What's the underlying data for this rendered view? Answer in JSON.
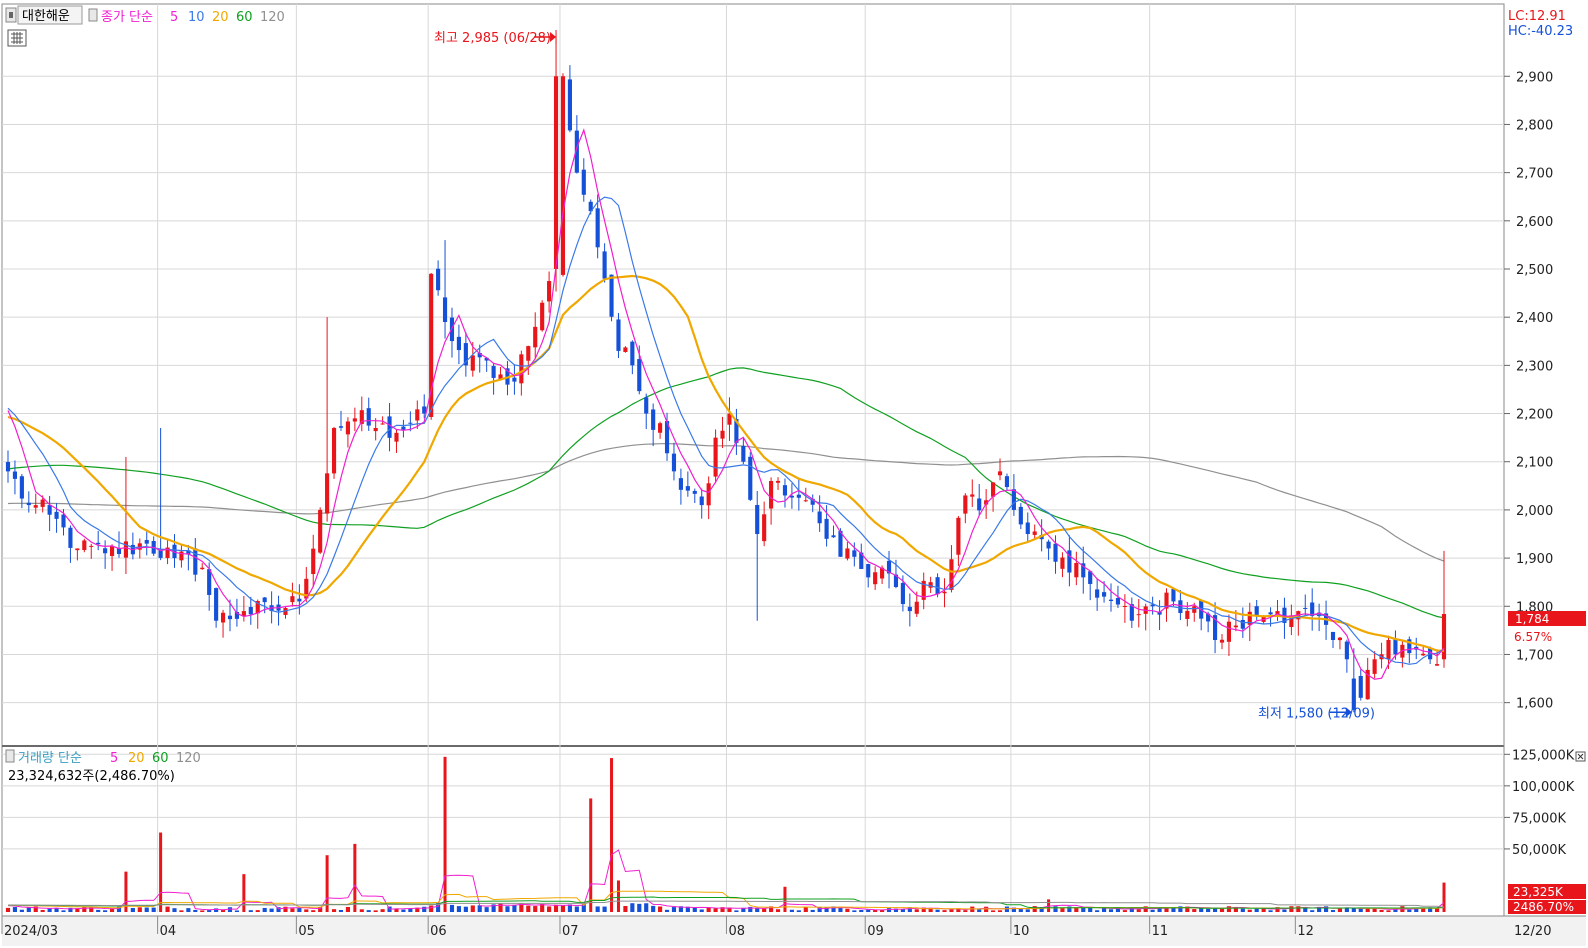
{
  "legend_price": {
    "box": "대한해운",
    "prefix": "종가 단순",
    "ma": [
      "5",
      "10",
      "20",
      "60",
      "120"
    ]
  },
  "legend_volume": {
    "prefix": "거래량 단순",
    "ma": [
      "5",
      "20",
      "60",
      "120"
    ],
    "summary": "23,324,632주(2,486.70%)"
  },
  "corner": {
    "lc": "LC:12.91",
    "hc": "HC:-40.23"
  },
  "price_tag": {
    "value": "1,784",
    "change": "6.57%"
  },
  "volume_tag": {
    "value": "23,325K",
    "change": "2486.70%"
  },
  "annotations": {
    "high": {
      "text": "최고 2,985 (06/28)",
      "value": 2985
    },
    "low": {
      "text": "최저 1,580 (12/09)",
      "value": 1580
    }
  },
  "colors": {
    "up": "#e8151b",
    "down": "#1450d8",
    "ma5": "#f020d0",
    "ma10": "#3a7ae8",
    "ma20": "#f0a800",
    "ma60": "#10a020",
    "ma120": "#909090",
    "grid": "#d8d8d8"
  },
  "chart_data": [
    {
      "type": "candlestick",
      "y_ticks": [
        "2,900",
        "2,800",
        "2,700",
        "2,600",
        "2,500",
        "2,400",
        "2,300",
        "2,200",
        "2,100",
        "2,000",
        "1,900",
        "1,800",
        "1,700",
        "1,600"
      ],
      "y_tick_values": [
        2900,
        2800,
        2700,
        2600,
        2500,
        2400,
        2300,
        2200,
        2100,
        2000,
        1900,
        1800,
        1700,
        1600
      ],
      "ylim": [
        1510,
        3050
      ],
      "x_ticks": [
        "2024/03",
        "04",
        "05",
        "06",
        "07",
        "08",
        "09",
        "10",
        "11",
        "12",
        "12/20"
      ],
      "x_tick_bars": [
        0,
        22,
        42,
        61,
        80,
        104,
        124,
        145,
        165,
        186,
        208
      ],
      "bar_count": 208,
      "close_anchors": [
        [
          0,
          2080
        ],
        [
          3,
          2010
        ],
        [
          6,
          1990
        ],
        [
          10,
          1920
        ],
        [
          14,
          1910
        ],
        [
          20,
          1930
        ],
        [
          24,
          1900
        ],
        [
          28,
          1880
        ],
        [
          30,
          1770
        ],
        [
          34,
          1790
        ],
        [
          38,
          1790
        ],
        [
          42,
          1810
        ],
        [
          45,
          2000
        ],
        [
          47,
          2170
        ],
        [
          50,
          2190
        ],
        [
          53,
          2170
        ],
        [
          56,
          2160
        ],
        [
          58,
          2180
        ],
        [
          60,
          2200
        ],
        [
          61,
          2490
        ],
        [
          63,
          2390
        ],
        [
          66,
          2300
        ],
        [
          69,
          2310
        ],
        [
          72,
          2260
        ],
        [
          75,
          2340
        ],
        [
          77,
          2430
        ],
        [
          79,
          2500
        ],
        [
          80,
          2900
        ],
        [
          82,
          2700
        ],
        [
          84,
          2620
        ],
        [
          86,
          2480
        ],
        [
          88,
          2330
        ],
        [
          90,
          2300
        ],
        [
          92,
          2200
        ],
        [
          94,
          2180
        ],
        [
          96,
          2080
        ],
        [
          98,
          2040
        ],
        [
          100,
          2010
        ],
        [
          102,
          2150
        ],
        [
          104,
          2200
        ],
        [
          106,
          2100
        ],
        [
          108,
          1950
        ],
        [
          110,
          2060
        ],
        [
          112,
          2030
        ],
        [
          115,
          2020
        ],
        [
          118,
          1940
        ],
        [
          121,
          1920
        ],
        [
          124,
          1860
        ],
        [
          126,
          1880
        ],
        [
          128,
          1840
        ],
        [
          130,
          1790
        ],
        [
          133,
          1850
        ],
        [
          135,
          1830
        ],
        [
          138,
          2030
        ],
        [
          141,
          2020
        ],
        [
          143,
          2080
        ],
        [
          145,
          2000
        ],
        [
          147,
          1950
        ],
        [
          150,
          1920
        ],
        [
          153,
          1870
        ],
        [
          155,
          1860
        ],
        [
          158,
          1820
        ],
        [
          162,
          1770
        ],
        [
          165,
          1800
        ],
        [
          168,
          1810
        ],
        [
          171,
          1800
        ],
        [
          174,
          1730
        ],
        [
          177,
          1760
        ],
        [
          180,
          1780
        ],
        [
          183,
          1790
        ],
        [
          186,
          1790
        ],
        [
          188,
          1780
        ],
        [
          191,
          1730
        ],
        [
          193,
          1690
        ],
        [
          195,
          1610
        ],
        [
          197,
          1690
        ],
        [
          199,
          1730
        ],
        [
          201,
          1720
        ],
        [
          203,
          1710
        ],
        [
          205,
          1690
        ],
        [
          206,
          1680
        ],
        [
          207,
          1784
        ]
      ],
      "high": 2985,
      "low": 1580,
      "last_close": 1784,
      "change_pct": 6.57,
      "ma_periods": [
        5,
        10,
        20,
        60,
        120
      ]
    },
    {
      "type": "bar",
      "series": "volume",
      "y_ticks": [
        "125,000K",
        "100,000K",
        "75,000K",
        "50,000K"
      ],
      "y_tick_values": [
        125000,
        100000,
        75000,
        50000
      ],
      "ylim": [
        0,
        130000
      ],
      "unit": "K",
      "spikes": [
        [
          17,
          32000
        ],
        [
          22,
          63000
        ],
        [
          34,
          30000
        ],
        [
          46,
          45000
        ],
        [
          50,
          54000
        ],
        [
          63,
          123000
        ],
        [
          84,
          90000
        ],
        [
          87,
          122000
        ],
        [
          88,
          25000
        ],
        [
          112,
          20000
        ],
        [
          150,
          10000
        ],
        [
          207,
          23325
        ]
      ],
      "last_value": 23325
    }
  ]
}
